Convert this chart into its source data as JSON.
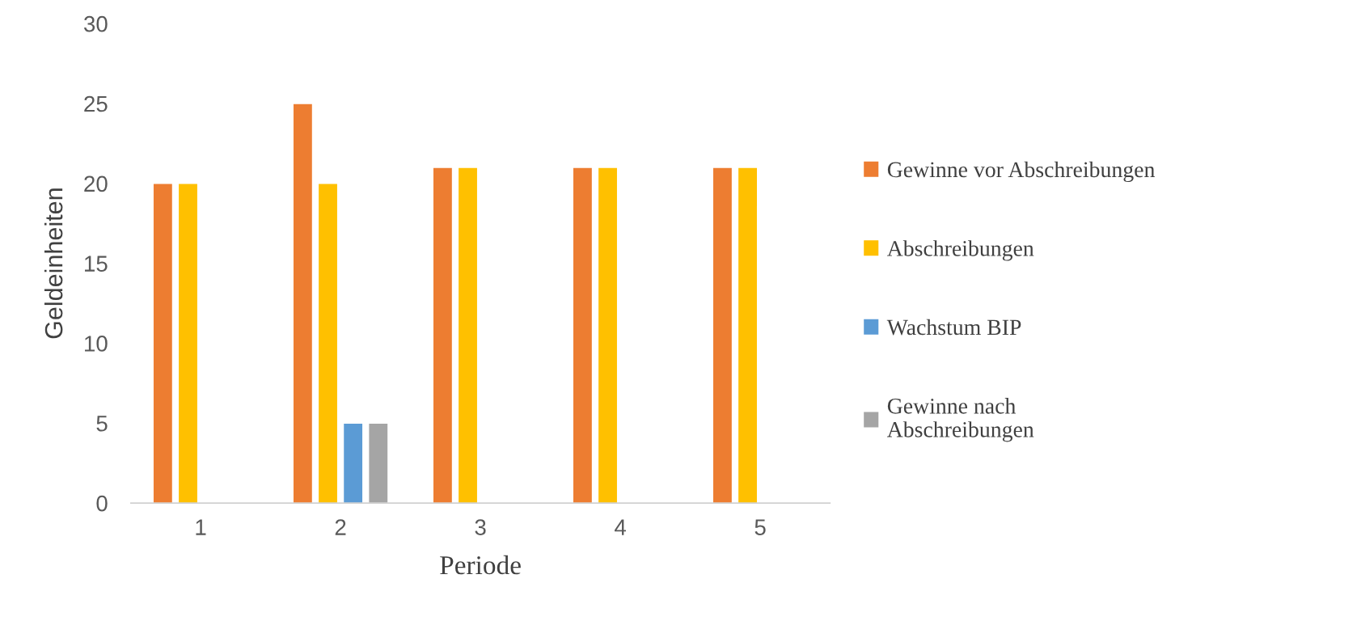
{
  "chart_data": {
    "type": "bar",
    "xlabel": "Periode",
    "ylabel": "Geldeinheiten",
    "categories": [
      "1",
      "2",
      "3",
      "4",
      "5"
    ],
    "series": [
      {
        "name": "Gewinne vor Abschreibungen",
        "color": "#ed7d31",
        "values": [
          20,
          25,
          21,
          21,
          21
        ]
      },
      {
        "name": "Abschreibungen",
        "color": "#ffc000",
        "values": [
          20,
          20,
          21,
          21,
          21
        ]
      },
      {
        "name": "Wachstum BIP",
        "color": "#5b9bd5",
        "values": [
          null,
          5,
          null,
          null,
          null
        ]
      },
      {
        "name": "Gewinne nach\nAbschreibungen",
        "color": "#a5a5a5",
        "values": [
          null,
          5,
          null,
          null,
          null
        ]
      }
    ],
    "ylim": [
      0,
      30
    ],
    "yticks": [
      0,
      5,
      10,
      15,
      20,
      25,
      30
    ],
    "grid": false,
    "legend": "right"
  }
}
